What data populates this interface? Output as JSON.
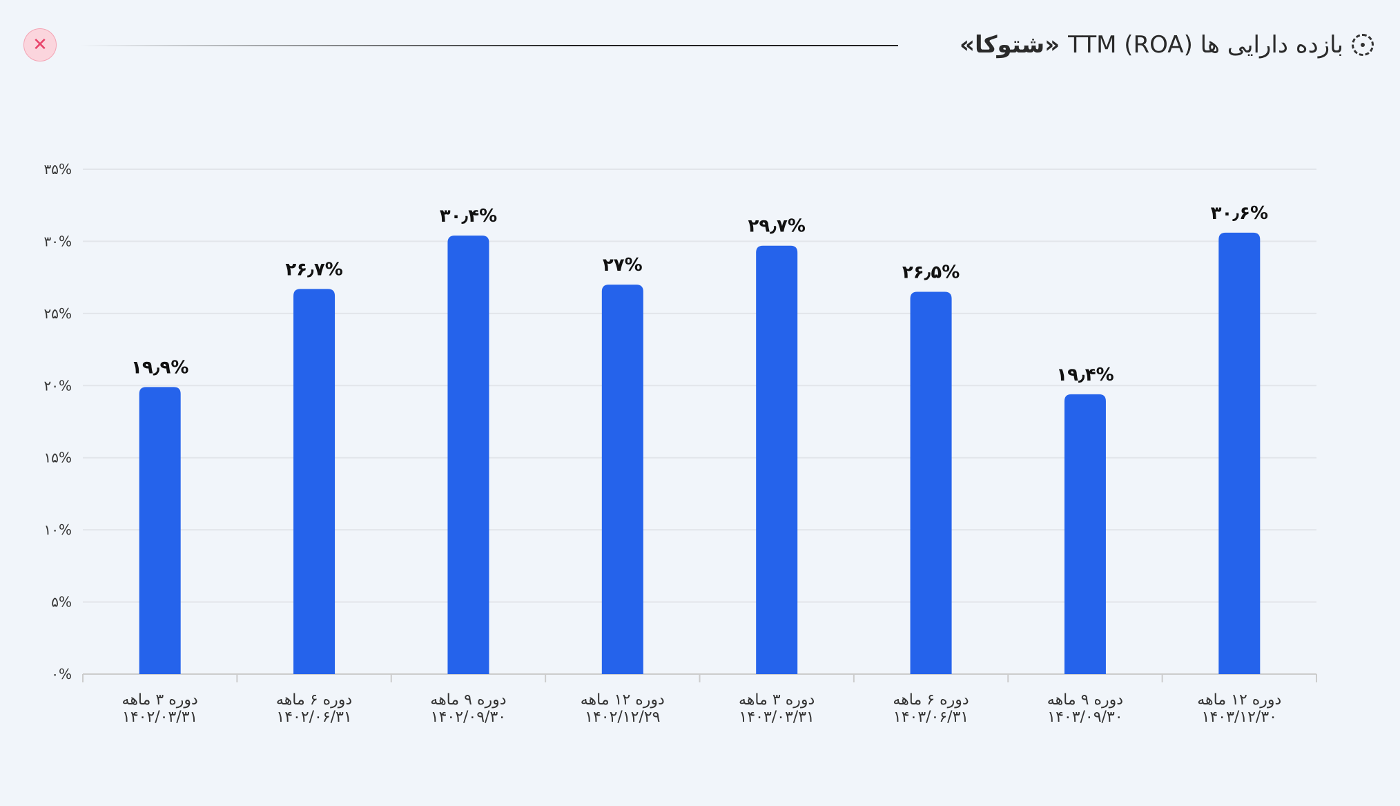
{
  "header": {
    "title_prefix": "بازده دارایی ها (ROA) TTM",
    "title_symbol": "«شتوکا»",
    "icon": "dashed-circle-icon",
    "close_icon": "close-icon"
  },
  "chart_data": {
    "type": "bar",
    "title": "بازده دارایی ها (ROA) TTM «شتوکا»",
    "bar_color": "#2563eb",
    "categories": [
      [
        "دوره ۳ ماهه",
        "۱۴۰۲/۰۳/۳۱"
      ],
      [
        "دوره ۶ ماهه",
        "۱۴۰۲/۰۶/۳۱"
      ],
      [
        "دوره ۹ ماهه",
        "۱۴۰۲/۰۹/۳۰"
      ],
      [
        "دوره ۱۲ ماهه",
        "۱۴۰۲/۱۲/۲۹"
      ],
      [
        "دوره ۳ ماهه",
        "۱۴۰۳/۰۳/۳۱"
      ],
      [
        "دوره ۶ ماهه",
        "۱۴۰۳/۰۶/۳۱"
      ],
      [
        "دوره ۹ ماهه",
        "۱۴۰۳/۰۹/۳۰"
      ],
      [
        "دوره ۱۲ ماهه",
        "۱۴۰۳/۱۲/۳۰"
      ]
    ],
    "values": [
      19.9,
      26.7,
      30.4,
      27,
      29.7,
      26.5,
      19.4,
      30.6
    ],
    "value_labels": [
      "۱۹٫۹%",
      "۲۶٫۷%",
      "۳۰٫۴%",
      "۲۷%",
      "۲۹٫۷%",
      "۲۶٫۵%",
      "۱۹٫۴%",
      "۳۰٫۶%"
    ],
    "ylim": [
      0,
      35
    ],
    "yticks": [
      0,
      5,
      10,
      15,
      20,
      25,
      30,
      35
    ],
    "ytick_labels": [
      "۰%",
      "۵%",
      "۱۰%",
      "۱۵%",
      "۲۰%",
      "۲۵%",
      "۳۰%",
      "۳۵%"
    ],
    "grid": true,
    "xlabel": "",
    "ylabel": ""
  }
}
